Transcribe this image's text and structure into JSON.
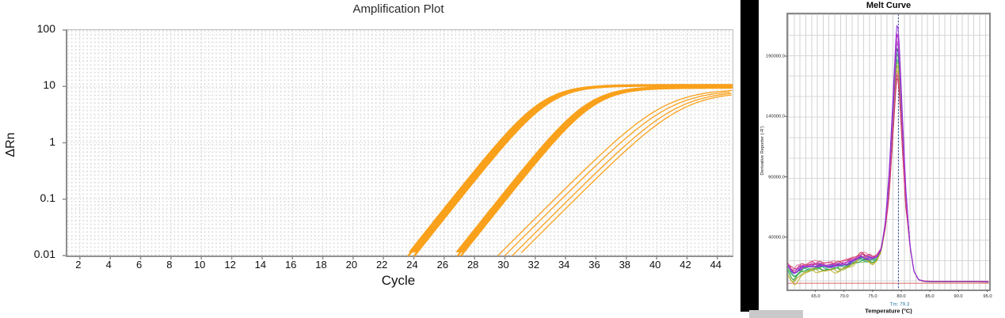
{
  "chart_data": [
    {
      "id": "amplification",
      "type": "line",
      "title": "Amplification Plot",
      "xlabel": "Cycle",
      "ylabel": "ΔRn",
      "y_scale": "log",
      "grid": "dotted",
      "legend": "none",
      "xlim": [
        1.17,
        45.0
      ],
      "ylim": [
        0.01,
        100
      ],
      "x_ticks": [
        2,
        4,
        6,
        8,
        10,
        12,
        14,
        16,
        18,
        20,
        22,
        24,
        26,
        28,
        30,
        32,
        34,
        36,
        38,
        40,
        42,
        44
      ],
      "y_ticks": [
        "100",
        "10",
        "1",
        "0.1",
        "0.01"
      ],
      "y_tick_values": [
        100,
        10,
        1,
        0.1,
        0.01
      ],
      "series_color": "#f9a11b",
      "groups": [
        {
          "name": "replicate-group-1",
          "k": 0.78,
          "stroke_width": 2.4,
          "replicates": [
            {
              "ct": 23.55,
              "plateau": 10.6
            },
            {
              "ct": 23.65,
              "plateau": 10.5
            },
            {
              "ct": 23.75,
              "plateau": 10.4
            },
            {
              "ct": 23.85,
              "plateau": 10.3
            },
            {
              "ct": 23.95,
              "plateau": 10.45
            },
            {
              "ct": 24.05,
              "plateau": 10.55
            }
          ]
        },
        {
          "name": "replicate-group-2",
          "k": 0.78,
          "stroke_width": 2.2,
          "replicates": [
            {
              "ct": 26.65,
              "plateau": 9.9
            },
            {
              "ct": 26.78,
              "plateau": 9.6
            },
            {
              "ct": 26.9,
              "plateau": 9.4
            },
            {
              "ct": 27.0,
              "plateau": 9.7
            },
            {
              "ct": 27.12,
              "plateau": 9.5
            }
          ]
        },
        {
          "name": "replicate-group-3",
          "k": 0.62,
          "stroke_width": 1.3,
          "replicates": [
            {
              "ct": 29.55,
              "plateau": 9.0
            },
            {
              "ct": 30.0,
              "plateau": 8.6
            },
            {
              "ct": 30.5,
              "plateau": 8.3
            },
            {
              "ct": 30.9,
              "plateau": 8.0
            }
          ]
        }
      ]
    },
    {
      "id": "melt",
      "type": "line",
      "title": "Melt Curve",
      "xlabel": "Temperature (°C)",
      "ylabel": "Derivative Reporter (-R')",
      "tm_annotation": "Tm: 79.3",
      "tm_value": 79.3,
      "grid": "fine-solid",
      "legend": "none",
      "xlim": [
        60.22,
        95.35
      ],
      "ylim": [
        -3400,
        224700
      ],
      "x_ticks": [
        "65.0",
        "70.0",
        "75.0",
        "80.0",
        "85.0",
        "90.0",
        "95.0"
      ],
      "x_tick_values": [
        65,
        70,
        75,
        80,
        85,
        90,
        95
      ],
      "y_ticks": [
        "190000.0",
        "140000.0",
        "90000.0",
        "40000.0"
      ],
      "y_tick_values": [
        190000,
        140000,
        90000,
        40000
      ],
      "tm_line_color": "#33509e",
      "threshold_line": {
        "color": "#d96a6a",
        "value": 1800
      },
      "base_curve": [
        [
          60.2,
          15500
        ],
        [
          60.8,
          11500
        ],
        [
          61.3,
          9500
        ],
        [
          62,
          12500
        ],
        [
          63,
          14500
        ],
        [
          64.5,
          15500
        ],
        [
          66,
          15800
        ],
        [
          67.5,
          15200
        ],
        [
          69,
          16000
        ],
        [
          70.5,
          17500
        ],
        [
          72,
          20500
        ],
        [
          73,
          23500
        ],
        [
          74,
          22000
        ],
        [
          75,
          21500
        ],
        [
          75.8,
          23500
        ],
        [
          76.5,
          30000
        ],
        [
          77.2,
          52000
        ],
        [
          77.9,
          95000
        ],
        [
          78.5,
          150000
        ],
        [
          79.0,
          198000
        ],
        [
          79.3,
          220000
        ],
        [
          79.7,
          196000
        ],
        [
          80.2,
          140000
        ],
        [
          80.8,
          80000
        ],
        [
          81.5,
          34000
        ],
        [
          82.2,
          12000
        ],
        [
          83,
          4800
        ],
        [
          84,
          3400
        ],
        [
          86,
          3100
        ],
        [
          88,
          3200
        ],
        [
          90,
          3100
        ],
        [
          92,
          3200
        ],
        [
          95.35,
          3000
        ]
      ],
      "series": [
        {
          "name": "teal",
          "color": "#2aa39b",
          "peak": 192000,
          "base_off": -1500,
          "wig": 900,
          "phase": 1.1,
          "bump": 0,
          "dip": 0
        },
        {
          "name": "light-green",
          "color": "#8cc454",
          "peak": 190000,
          "base_off": -2500,
          "wig": 1100,
          "phase": 2.3,
          "bump": 0,
          "dip": -2000
        },
        {
          "name": "medium-green",
          "color": "#4bb85e",
          "peak": 197000,
          "base_off": -1200,
          "wig": 1000,
          "phase": 0.4,
          "bump": 0,
          "dip": -1500
        },
        {
          "name": "green",
          "color": "#2ea44a",
          "peak": 202000,
          "base_off": -2000,
          "wig": 900,
          "phase": 3.1,
          "bump": 0,
          "dip": -2500
        },
        {
          "name": "olive",
          "color": "#a8a62c",
          "peak": 187000,
          "base_off": -3000,
          "wig": 1300,
          "phase": 4.0,
          "bump": 5200,
          "dip": -5200
        },
        {
          "name": "yellow",
          "color": "#c2b433",
          "peak": 183000,
          "base_off": -3800,
          "wig": 1200,
          "phase": 5.2,
          "bump": 6500,
          "dip": -6500
        },
        {
          "name": "indigo",
          "color": "#3f3fae",
          "peak": 201000,
          "base_off": 500,
          "wig": 800,
          "phase": 0.9,
          "bump": 0,
          "dip": 0
        },
        {
          "name": "blue",
          "color": "#4a55c4",
          "peak": 206000,
          "base_off": 1000,
          "wig": 900,
          "phase": 2.8,
          "bump": 0,
          "dip": 0
        },
        {
          "name": "red",
          "color": "#c43a50",
          "peak": 176000,
          "base_off": 2600,
          "wig": 1200,
          "phase": 1.9,
          "bump": 0,
          "dip": 0
        },
        {
          "name": "pink",
          "color": "#e27ba2",
          "peak": 181000,
          "base_off": 3400,
          "wig": 1300,
          "phase": 3.6,
          "bump": 0,
          "dip": 0
        },
        {
          "name": "crimson",
          "color": "#d1356e",
          "peak": 179000,
          "base_off": 3000,
          "wig": 1000,
          "phase": 5.0,
          "bump": 0,
          "dip": 0
        },
        {
          "name": "violet",
          "color": "#6a46d4",
          "peak": 213000,
          "base_off": 800,
          "wig": 700,
          "phase": 1.4,
          "bump": 0,
          "dip": 0
        },
        {
          "name": "orchid",
          "color": "#cf5ad2",
          "peak": 208000,
          "base_off": 1800,
          "wig": 900,
          "phase": 2.2,
          "bump": 0,
          "dip": 0
        },
        {
          "name": "magenta",
          "color": "#c22fc2",
          "peak": 214000,
          "base_off": 1400,
          "wig": 800,
          "phase": 4.4,
          "bump": 0,
          "dip": 0
        },
        {
          "name": "purple",
          "color": "#8e2fd6",
          "peak": 221000,
          "base_off": 200,
          "wig": 700,
          "phase": 0.1,
          "bump": 0,
          "dip": 0
        }
      ]
    }
  ]
}
